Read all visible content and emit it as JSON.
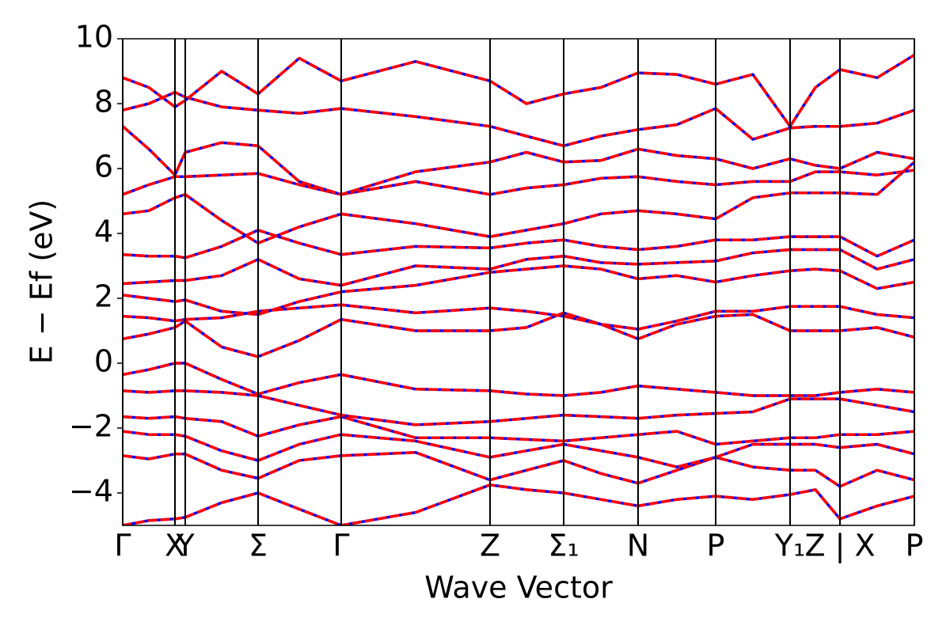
{
  "chart_data": {
    "type": "line",
    "x_label": "Wave Vector",
    "y_label": "E − Ef (eV)",
    "xlim": [
      0,
      1
    ],
    "ylim": [
      -5,
      10
    ],
    "yticks": [
      {
        "value": -4,
        "label": "−4"
      },
      {
        "value": -2,
        "label": "−2"
      },
      0,
      2,
      4,
      6,
      8,
      10
    ],
    "xticks": [
      {
        "value": 0,
        "label": "Γ"
      },
      {
        "value": 0.066,
        "label": "X"
      },
      {
        "value": 0.079,
        "label": "Y"
      },
      {
        "value": 0.171,
        "label": "Σ"
      },
      {
        "value": 0.276,
        "label": "Γ"
      },
      {
        "value": 0.464,
        "label": "Z"
      },
      {
        "value": 0.557,
        "label": "Σ₁"
      },
      {
        "value": 0.651,
        "label": "N"
      },
      {
        "value": 0.749,
        "label": "P"
      },
      {
        "value": 0.843,
        "label": "Y₁"
      },
      {
        "value": 0.906,
        "label": "Z | X"
      },
      {
        "value": 1,
        "label": "P"
      }
    ],
    "underlay_color": "#0000ff",
    "x": [
      0,
      0.033,
      0.066,
      0.079,
      0.125,
      0.171,
      0.223,
      0.276,
      0.37,
      0.464,
      0.51,
      0.557,
      0.604,
      0.651,
      0.7,
      0.749,
      0.796,
      0.843,
      0.875,
      0.906,
      0.953,
      1
    ],
    "series": [
      {
        "color": "#ff0000",
        "values": [
          -5.0,
          -4.85,
          -4.8,
          -4.75,
          -4.3,
          -4.0,
          -4.5,
          -5.0,
          -4.6,
          -3.75,
          -3.9,
          -4.0,
          -4.2,
          -4.4,
          -4.2,
          -4.1,
          -4.2,
          -4.05,
          -3.9,
          -4.8,
          -4.4,
          -4.1
        ]
      },
      {
        "color": "#ff0000",
        "values": [
          -2.85,
          -2.95,
          -2.8,
          -2.8,
          -3.3,
          -3.55,
          -3.0,
          -2.85,
          -2.75,
          -3.6,
          -3.3,
          -3.0,
          -3.4,
          -3.7,
          -3.3,
          -2.9,
          -3.2,
          -3.3,
          -3.3,
          -3.8,
          -3.3,
          -3.6
        ]
      },
      {
        "color": "#ff0000",
        "values": [
          -2.1,
          -2.2,
          -2.2,
          -2.25,
          -2.7,
          -3.0,
          -2.5,
          -2.2,
          -2.4,
          -2.9,
          -2.7,
          -2.5,
          -2.7,
          -2.9,
          -3.2,
          -2.9,
          -2.5,
          -2.5,
          -2.5,
          -2.6,
          -2.5,
          -2.8
        ]
      },
      {
        "color": "#ff0000",
        "values": [
          -1.65,
          -1.7,
          -1.65,
          -1.7,
          -1.8,
          -2.25,
          -1.9,
          -1.65,
          -2.3,
          -2.3,
          -2.35,
          -2.4,
          -2.3,
          -2.2,
          -2.1,
          -2.5,
          -2.4,
          -2.3,
          -2.3,
          -2.2,
          -2.2,
          -2.1
        ]
      },
      {
        "color": "#ff0000",
        "values": [
          -0.85,
          -0.9,
          -0.85,
          -0.85,
          -0.9,
          -1.0,
          -1.3,
          -1.6,
          -1.9,
          -1.8,
          -1.7,
          -1.6,
          -1.65,
          -1.7,
          -1.6,
          -1.55,
          -1.5,
          -1.1,
          -1.1,
          -1.1,
          -1.3,
          -1.5
        ]
      },
      {
        "color": "#ff0000",
        "values": [
          -0.35,
          -0.2,
          0.0,
          0.0,
          -0.5,
          -0.95,
          -0.6,
          -0.35,
          -0.8,
          -0.85,
          -0.95,
          -1.0,
          -0.9,
          -0.7,
          -0.8,
          -0.9,
          -1.0,
          -1.0,
          -1.0,
          -0.9,
          -0.8,
          -0.9
        ]
      },
      {
        "color": "#ff0000",
        "values": [
          0.75,
          0.9,
          1.1,
          1.3,
          0.5,
          0.2,
          0.7,
          1.35,
          1.0,
          1.0,
          1.1,
          1.55,
          1.2,
          0.75,
          1.2,
          1.45,
          1.5,
          1.0,
          1.0,
          1.0,
          1.1,
          0.8
        ]
      },
      {
        "color": "#ff0000",
        "values": [
          1.45,
          1.4,
          1.3,
          1.35,
          1.4,
          1.6,
          1.7,
          1.8,
          1.55,
          1.7,
          1.6,
          1.45,
          1.2,
          1.05,
          1.3,
          1.6,
          1.6,
          1.75,
          1.75,
          1.75,
          1.5,
          1.4
        ]
      },
      {
        "color": "#ff0000",
        "values": [
          2.1,
          2.0,
          1.9,
          1.95,
          1.6,
          1.5,
          1.9,
          2.2,
          2.4,
          2.8,
          2.9,
          3.0,
          2.9,
          2.6,
          2.7,
          2.5,
          2.7,
          2.85,
          2.9,
          2.85,
          2.3,
          2.5
        ]
      },
      {
        "color": "#ff0000",
        "values": [
          2.45,
          2.5,
          2.55,
          2.55,
          2.7,
          3.2,
          2.6,
          2.4,
          3.0,
          2.9,
          3.2,
          3.3,
          3.1,
          3.05,
          3.1,
          3.15,
          3.4,
          3.5,
          3.5,
          3.5,
          2.9,
          3.2
        ]
      },
      {
        "color": "#ff0000",
        "values": [
          3.35,
          3.3,
          3.3,
          3.25,
          3.6,
          4.1,
          3.7,
          3.35,
          3.6,
          3.55,
          3.7,
          3.8,
          3.6,
          3.5,
          3.6,
          3.8,
          3.8,
          3.9,
          3.9,
          3.9,
          3.3,
          3.8
        ]
      },
      {
        "color": "#ff0000",
        "values": [
          4.6,
          4.7,
          5.1,
          5.2,
          4.4,
          3.7,
          4.2,
          4.6,
          4.3,
          3.9,
          4.1,
          4.3,
          4.6,
          4.7,
          4.6,
          4.45,
          5.1,
          5.25,
          5.25,
          5.25,
          5.2,
          6.2
        ]
      },
      {
        "color": "#ff0000",
        "values": [
          5.2,
          5.5,
          5.75,
          5.75,
          5.8,
          5.85,
          5.5,
          5.2,
          5.6,
          5.2,
          5.4,
          5.5,
          5.7,
          5.75,
          5.6,
          5.5,
          5.6,
          5.6,
          5.9,
          5.9,
          5.8,
          5.95
        ]
      },
      {
        "color": "#ff0000",
        "values": [
          7.3,
          6.6,
          5.8,
          6.5,
          6.8,
          6.7,
          5.6,
          5.2,
          5.9,
          6.2,
          6.5,
          6.2,
          6.25,
          6.6,
          6.4,
          6.3,
          6.0,
          6.3,
          6.1,
          6.0,
          6.5,
          6.3
        ]
      },
      {
        "color": "#ff0000",
        "values": [
          7.8,
          8.0,
          8.35,
          8.2,
          7.9,
          7.8,
          7.7,
          7.85,
          7.6,
          7.3,
          7.0,
          6.7,
          7.0,
          7.2,
          7.35,
          7.85,
          6.9,
          7.25,
          7.3,
          7.3,
          7.4,
          7.8
        ]
      },
      {
        "color": "#ff0000",
        "values": [
          8.8,
          8.5,
          7.9,
          8.1,
          9.0,
          8.3,
          9.4,
          8.7,
          9.3,
          8.7,
          8.0,
          8.3,
          8.5,
          8.95,
          8.9,
          8.6,
          8.9,
          7.3,
          8.5,
          9.05,
          8.8,
          9.5
        ]
      }
    ]
  }
}
